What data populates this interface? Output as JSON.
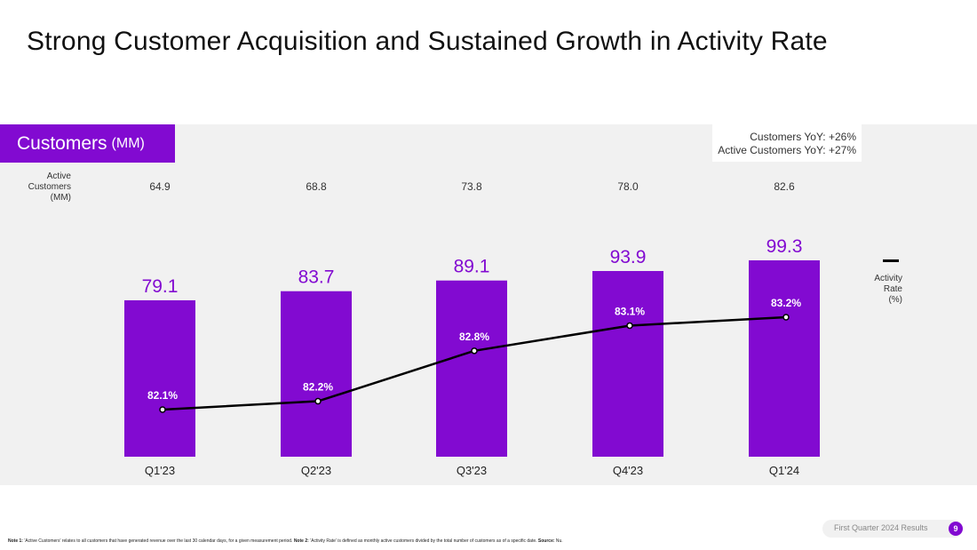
{
  "title": "Strong Customer Acquisition and Sustained Growth in Activity Rate",
  "panel": {
    "tag_label": "Customers",
    "tag_unit": "(MM)",
    "yoy_customers": "Customers YoY: +26%",
    "yoy_active": "Active Customers YoY: +27%",
    "active_label_line1": "Active",
    "active_label_line2": "Customers",
    "active_label_line3": "(MM)",
    "activity_legend_line1": "Activity",
    "activity_legend_line2": "Rate",
    "activity_legend_line3": "(%)"
  },
  "chart_data": {
    "type": "bar",
    "categories": [
      "Q1'23",
      "Q2'23",
      "Q3'23",
      "Q4'23",
      "Q1'24"
    ],
    "bar_labels": [
      "79.1",
      "83.7",
      "89.1",
      "93.9",
      "99.3"
    ],
    "active_labels": [
      "64.9",
      "68.8",
      "73.8",
      "78.0",
      "82.6"
    ],
    "line_labels": [
      "82.1%",
      "82.2%",
      "82.8%",
      "83.1%",
      "83.2%"
    ],
    "series": [
      {
        "name": "Customers",
        "type": "bar",
        "values": [
          79.1,
          83.7,
          89.1,
          93.9,
          99.3
        ]
      },
      {
        "name": "Active Customers",
        "type": "text",
        "values": [
          64.9,
          68.8,
          73.8,
          78.0,
          82.6
        ]
      },
      {
        "name": "Activity Rate",
        "type": "line",
        "values": [
          82.1,
          82.2,
          82.8,
          83.1,
          83.2
        ]
      }
    ],
    "colors": {
      "bar": "#820ad1",
      "line": "#000000",
      "label": "#820ad1"
    }
  },
  "footer": {
    "badge_text": "First Quarter 2024 Results",
    "page_number": "9",
    "note1_label": "Note 1:",
    "note1_text": " 'Active Customers' relates to all customers that have generated revenue over the last 30 calendar days, for a given measurement period. ",
    "note2_label": "Note 2:",
    "note2_text": " 'Activity Rate' is defined as monthly active customers divided by the total number of customers as of a specific date. ",
    "source_label": "Source:",
    "source_text": " Nu."
  }
}
